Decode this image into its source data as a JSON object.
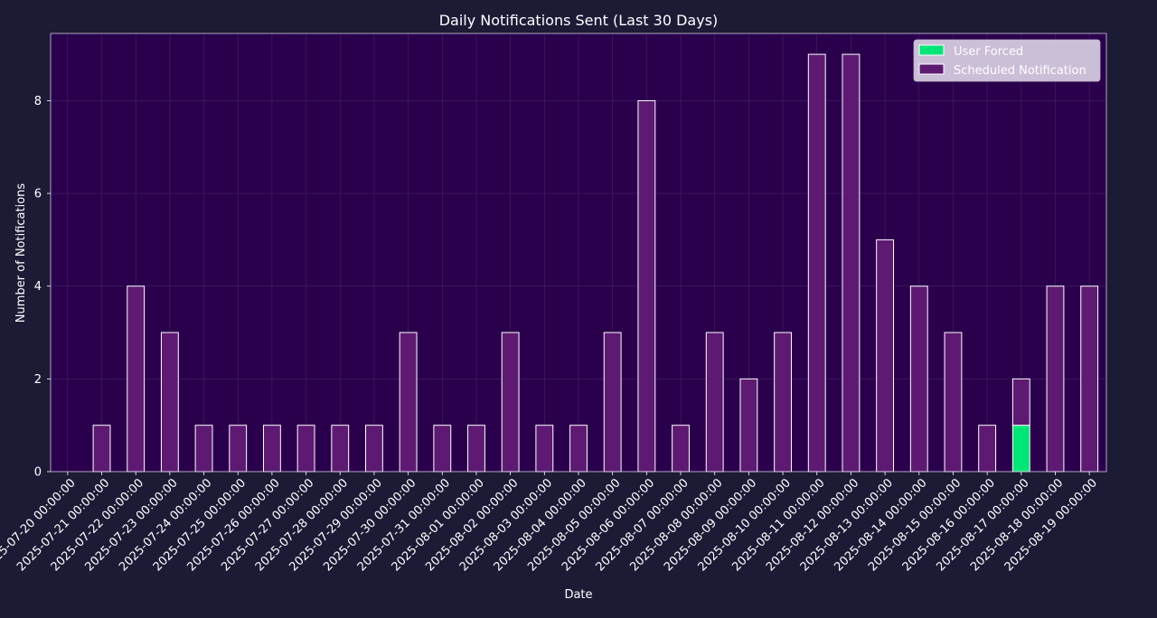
{
  "chart_data": {
    "type": "bar",
    "stacked": true,
    "title": "Daily Notifications Sent (Last 30 Days)",
    "xlabel": "Date",
    "ylabel": "Number of Notifications",
    "ylim": [
      0,
      9.45
    ],
    "yticks": [
      0,
      2,
      4,
      6,
      8
    ],
    "grid": true,
    "legend_position": "top-right",
    "categories": [
      "2025-07-20 00:00:00",
      "2025-07-21 00:00:00",
      "2025-07-22 00:00:00",
      "2025-07-23 00:00:00",
      "2025-07-24 00:00:00",
      "2025-07-25 00:00:00",
      "2025-07-26 00:00:00",
      "2025-07-27 00:00:00",
      "2025-07-28 00:00:00",
      "2025-07-29 00:00:00",
      "2025-07-30 00:00:00",
      "2025-07-31 00:00:00",
      "2025-08-01 00:00:00",
      "2025-08-02 00:00:00",
      "2025-08-03 00:00:00",
      "2025-08-04 00:00:00",
      "2025-08-05 00:00:00",
      "2025-08-06 00:00:00",
      "2025-08-07 00:00:00",
      "2025-08-08 00:00:00",
      "2025-08-09 00:00:00",
      "2025-08-10 00:00:00",
      "2025-08-11 00:00:00",
      "2025-08-12 00:00:00",
      "2025-08-13 00:00:00",
      "2025-08-14 00:00:00",
      "2025-08-15 00:00:00",
      "2025-08-16 00:00:00",
      "2025-08-17 00:00:00",
      "2025-08-18 00:00:00",
      "2025-08-19 00:00:00"
    ],
    "series": [
      {
        "name": "User Forced",
        "color": "#00e676",
        "values": [
          0,
          0,
          0,
          0,
          0,
          0,
          0,
          0,
          0,
          0,
          0,
          0,
          0,
          0,
          0,
          0,
          0,
          0,
          0,
          0,
          0,
          0,
          0,
          0,
          0,
          0,
          0,
          0,
          1,
          0,
          0
        ]
      },
      {
        "name": "Scheduled Notification",
        "color": "#5e1a73",
        "values": [
          0,
          1,
          4,
          3,
          1,
          1,
          1,
          1,
          1,
          1,
          3,
          1,
          1,
          3,
          1,
          1,
          3,
          8,
          1,
          3,
          2,
          3,
          9,
          9,
          5,
          4,
          3,
          1,
          1,
          4,
          4
        ]
      }
    ],
    "colors": {
      "background": "#1c1b36",
      "plot_background": "#2a004d",
      "text": "#ffffff",
      "grid": "#4a2a6a",
      "bar_edge": "#ffffff",
      "legend_background": "#e8dff0",
      "legend_text": "#ffffff"
    }
  }
}
